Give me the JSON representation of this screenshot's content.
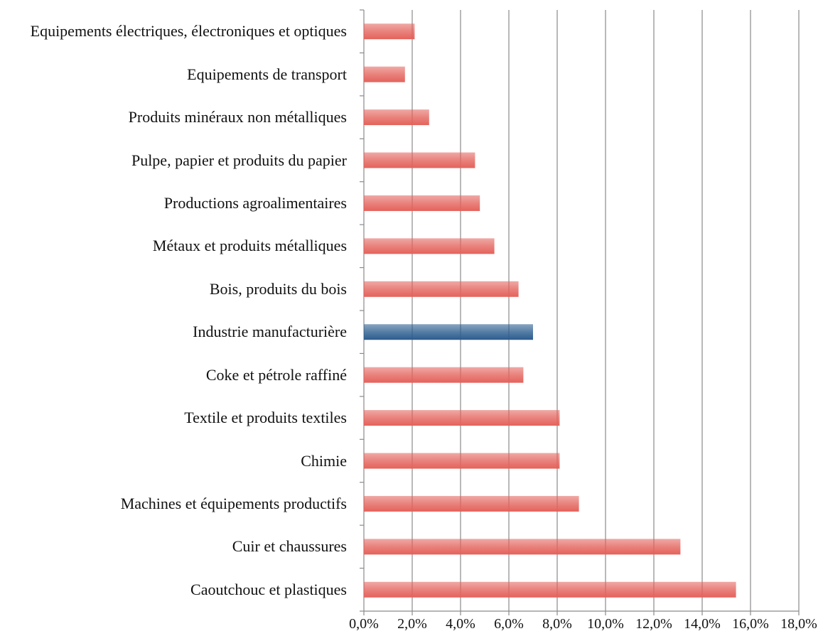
{
  "chart_data": {
    "type": "bar",
    "orientation": "horizontal",
    "categories": [
      "Equipements électriques, électroniques et optiques",
      "Equipements de transport",
      "Produits minéraux non métalliques",
      "Pulpe, papier et produits du papier",
      "Productions agroalimentaires",
      "Métaux et produits métalliques",
      "Bois, produits du bois",
      "Industrie manufacturière",
      "Coke et pétrole raffiné",
      "Textile et produits textiles",
      "Chimie",
      "Machines et équipements productifs",
      "Cuir et chaussures",
      "Caoutchouc et plastiques"
    ],
    "values": [
      2.1,
      1.7,
      2.7,
      4.6,
      4.8,
      5.4,
      6.4,
      7.0,
      6.6,
      8.1,
      8.1,
      8.9,
      13.1,
      15.4
    ],
    "colors": [
      "#e4625b",
      "#e4625b",
      "#e4625b",
      "#e4625b",
      "#e4625b",
      "#e4625b",
      "#e4625b",
      "#2b5c8e",
      "#e4625b",
      "#e4625b",
      "#e4625b",
      "#e4625b",
      "#e4625b",
      "#e4625b"
    ],
    "xlim": [
      0,
      18
    ],
    "xticks": [
      {
        "value": 0,
        "label": "0,0%"
      },
      {
        "value": 2,
        "label": "2,0%"
      },
      {
        "value": 4,
        "label": "4,0%"
      },
      {
        "value": 6,
        "label": "6,0%"
      },
      {
        "value": 8,
        "label": "8,0%"
      },
      {
        "value": 10,
        "label": "10,0%"
      },
      {
        "value": 12,
        "label": "12,0%"
      },
      {
        "value": 14,
        "label": "14,0%"
      },
      {
        "value": 16,
        "label": "16,0%"
      },
      {
        "value": 18,
        "label": "18,0%"
      }
    ],
    "grid": true
  }
}
